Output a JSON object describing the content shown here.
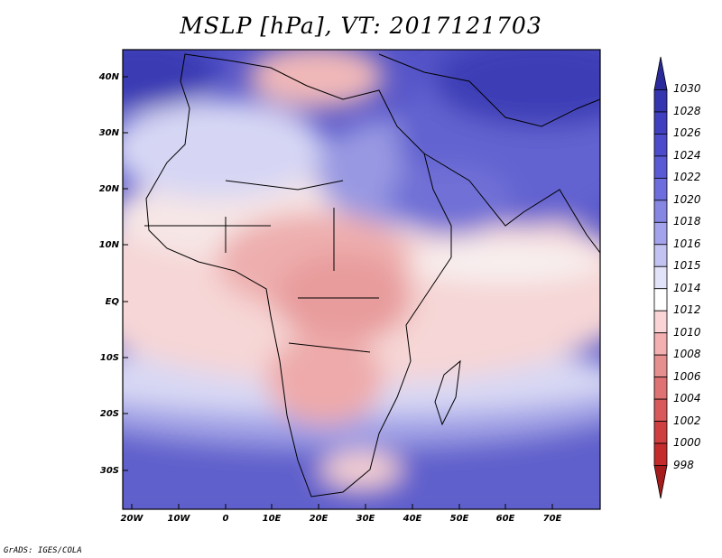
{
  "title": "MSLP [hPa], VT: 2017121703",
  "footer": "GrADS: IGES/COLA",
  "lat_labels": [
    "40N",
    "30N",
    "20N",
    "10N",
    "EQ",
    "10S",
    "20S",
    "30S"
  ],
  "lon_labels": [
    "20W",
    "10W",
    "0",
    "10E",
    "20E",
    "30E",
    "40E",
    "50E",
    "60E",
    "70E"
  ],
  "colorbar": {
    "labels": [
      "1030",
      "1028",
      "1026",
      "1024",
      "1022",
      "1020",
      "1018",
      "1016",
      "1015",
      "1014",
      "1012",
      "1010",
      "1008",
      "1006",
      "1004",
      "1002",
      "1000",
      "998"
    ],
    "colors": [
      "#2b2a9c",
      "#3535b0",
      "#3f3fbf",
      "#4b4bcc",
      "#5a5ad4",
      "#6d6ddd",
      "#8686e3",
      "#a3a3eb",
      "#c3c3f2",
      "#e2e2f8",
      "#ffffff",
      "#fbd5d5",
      "#f3b0b0",
      "#e68f8f",
      "#df7272",
      "#d95a5a",
      "#cf3f3f",
      "#c42b2b",
      "#a61c1c"
    ]
  }
}
